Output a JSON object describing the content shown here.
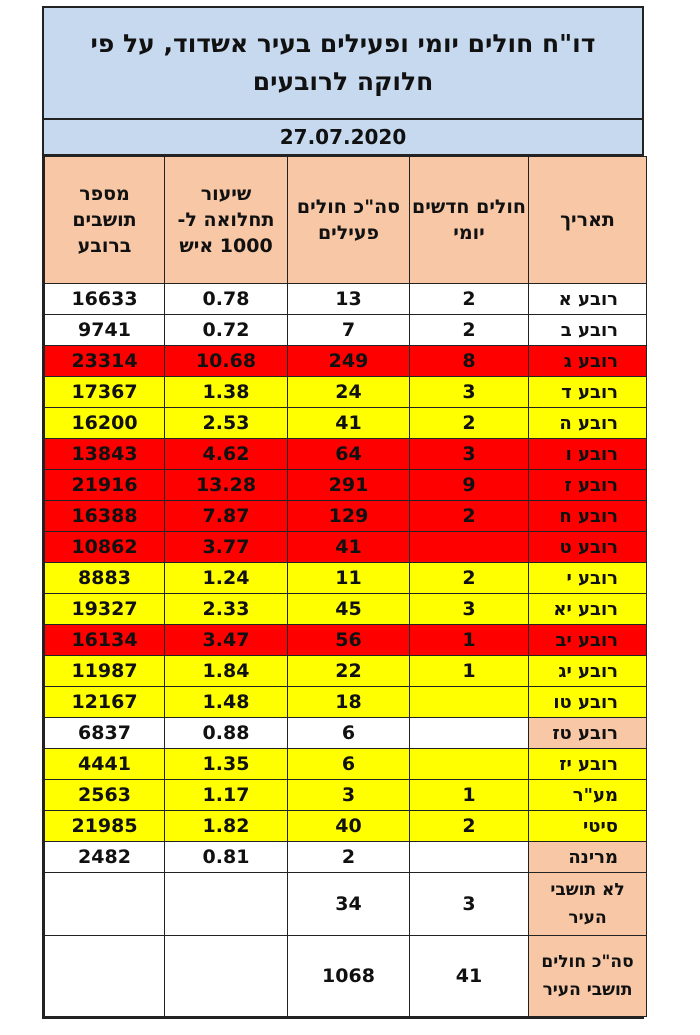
{
  "title": "דו\"ח חולים יומי ופעילים בעיר אשדוד, על פי חלוקה לרובעים",
  "date": "27.07.2020",
  "headers": {
    "date_col": "תאריך",
    "new_daily": "חולים חדשים יומי",
    "total_active": "סה\"כ חולים פעילים",
    "rate_per_1000": "שיעור תחלואה ל- 1000 איש",
    "residents": "מספר תושבים ברובע"
  },
  "colors": {
    "title_bg": "#c6d9ef",
    "header_bg": "#f7c7a6",
    "red": "#ff0000",
    "yellow": "#ffff00",
    "white": "#ffffff"
  },
  "rows": [
    {
      "name": "רובע א",
      "new": "2",
      "active": "13",
      "rate": "0.78",
      "residents": "16633",
      "status": "white"
    },
    {
      "name": "רובע ב",
      "new": "2",
      "active": "7",
      "rate": "0.72",
      "residents": "9741",
      "status": "white"
    },
    {
      "name": "רובע ג",
      "new": "8",
      "active": "249",
      "rate": "10.68",
      "residents": "23314",
      "status": "red"
    },
    {
      "name": "רובע ד",
      "new": "3",
      "active": "24",
      "rate": "1.38",
      "residents": "17367",
      "status": "yellow"
    },
    {
      "name": "רובע ה",
      "new": "2",
      "active": "41",
      "rate": "2.53",
      "residents": "16200",
      "status": "yellow"
    },
    {
      "name": "רובע ו",
      "new": "3",
      "active": "64",
      "rate": "4.62",
      "residents": "13843",
      "status": "red"
    },
    {
      "name": "רובע ז",
      "new": "9",
      "active": "291",
      "rate": "13.28",
      "residents": "21916",
      "status": "red"
    },
    {
      "name": "רובע ח",
      "new": "2",
      "active": "129",
      "rate": "7.87",
      "residents": "16388",
      "status": "red"
    },
    {
      "name": "רובע ט",
      "new": "",
      "active": "41",
      "rate": "3.77",
      "residents": "10862",
      "status": "red"
    },
    {
      "name": "רובע י",
      "new": "2",
      "active": "11",
      "rate": "1.24",
      "residents": "8883",
      "status": "yellow"
    },
    {
      "name": "רובע יא",
      "new": "3",
      "active": "45",
      "rate": "2.33",
      "residents": "19327",
      "status": "yellow"
    },
    {
      "name": "רובע יב",
      "new": "1",
      "active": "56",
      "rate": "3.47",
      "residents": "16134",
      "status": "red"
    },
    {
      "name": "רובע יג",
      "new": "1",
      "active": "22",
      "rate": "1.84",
      "residents": "11987",
      "status": "yellow"
    },
    {
      "name": "רובע טו",
      "new": "",
      "active": "18",
      "rate": "1.48",
      "residents": "12167",
      "status": "yellow"
    },
    {
      "name": "רובע טז",
      "new": "",
      "active": "6",
      "rate": "0.88",
      "residents": "6837",
      "status": "white",
      "name_bg": "peach"
    },
    {
      "name": "רובע יז",
      "new": "",
      "active": "6",
      "rate": "1.35",
      "residents": "4441",
      "status": "yellow"
    },
    {
      "name": "מע\"ר",
      "new": "1",
      "active": "3",
      "rate": "1.17",
      "residents": "2563",
      "status": "yellow"
    },
    {
      "name": "סיטי",
      "new": "2",
      "active": "40",
      "rate": "1.82",
      "residents": "21985",
      "status": "yellow"
    },
    {
      "name": "מרינה",
      "new": "",
      "active": "2",
      "rate": "0.81",
      "residents": "2482",
      "status": "white",
      "name_bg": "peach"
    }
  ],
  "non_residents": {
    "name": "לא תושבי העיר",
    "new": "3",
    "active": "34",
    "rate": "",
    "residents": ""
  },
  "totals": {
    "name": "סה\"כ חולים תושבי העיר",
    "new": "41",
    "active": "1068",
    "rate": "",
    "residents": ""
  }
}
